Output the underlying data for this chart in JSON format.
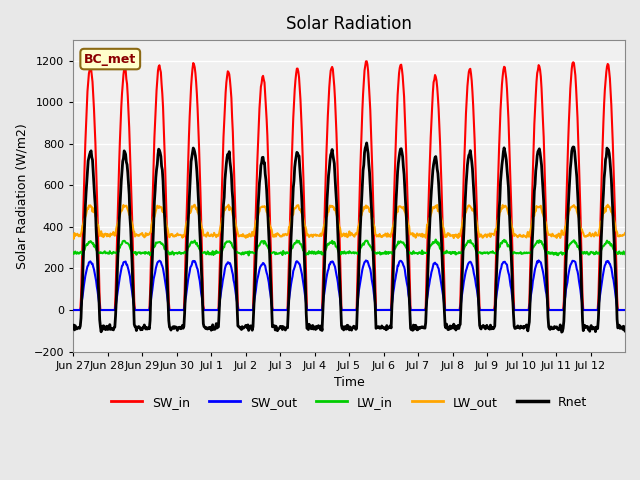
{
  "title": "Solar Radiation",
  "xlabel": "Time",
  "ylabel": "Solar Radiation (W/m2)",
  "ylim": [
    -200,
    1300
  ],
  "yticks": [
    -200,
    0,
    200,
    400,
    600,
    800,
    1000,
    1200
  ],
  "x_labels": [
    "Jun 27",
    "Jun 28",
    "Jun 29",
    "Jun 30",
    "Jul 1",
    "Jul 2",
    "Jul 3",
    "Jul 4",
    "Jul 5",
    "Jul 6",
    "Jul 7",
    "Jul 8",
    "Jul 9",
    "Jul 10",
    "Jul 11",
    "Jul 12"
  ],
  "annotation_text": "BC_met",
  "annotation_color": "#8B0000",
  "annotation_bg": "#FFFFCC",
  "annotation_edge": "#8B6914",
  "bg_color": "#E8E8E8",
  "plot_bg": "#F0F0F0",
  "grid_color": "#FFFFFF",
  "SW_in_color": "#FF0000",
  "SW_out_color": "#0000FF",
  "LW_in_color": "#00CC00",
  "LW_out_color": "#FFA500",
  "Rnet_color": "#000000",
  "lw_SW_in": 1.5,
  "lw_SW_out": 1.5,
  "lw_LW_in": 1.5,
  "lw_LW_out": 1.5,
  "lw_Rnet": 2.0,
  "n_days": 16,
  "dt_hours": 0.5
}
